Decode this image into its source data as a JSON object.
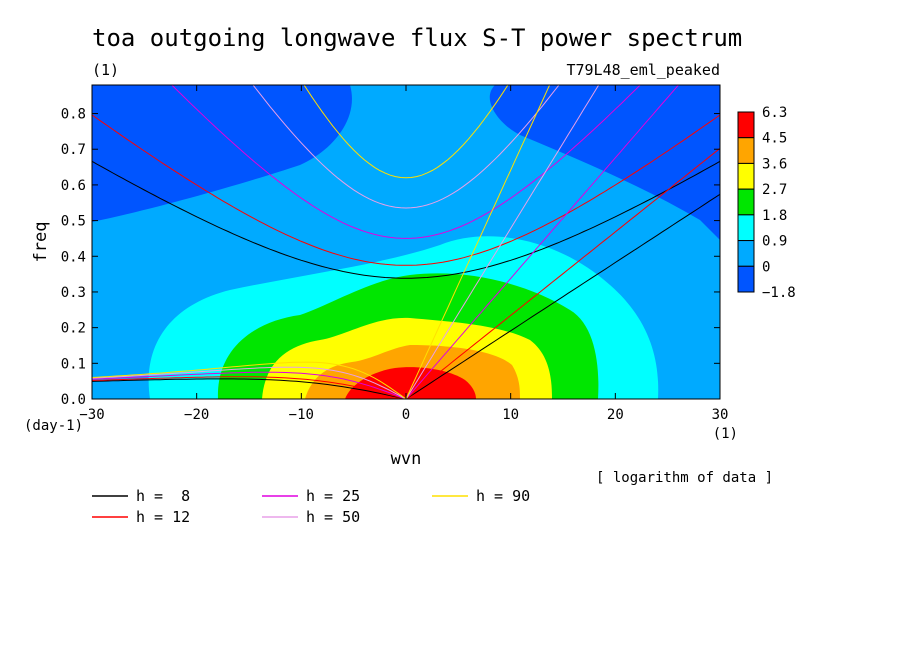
{
  "chart_data": {
    "type": "heatmap",
    "title": "toa outgoing longwave flux S-T power spectrum",
    "subtitle_left": "(1)",
    "subtitle_right": "T79L48_eml_peaked",
    "xlabel": "wvn",
    "ylabel": "freq",
    "x_unit": "(1)",
    "y_unit": "(day-1)",
    "xlim": [
      -30,
      30
    ],
    "ylim": [
      0,
      0.88
    ],
    "xticks": [
      -30,
      -20,
      -10,
      0,
      10,
      20,
      30
    ],
    "xtick_labels": [
      "−30",
      "−20",
      "−10",
      "0",
      "10",
      "20",
      "30"
    ],
    "yticks": [
      0,
      0.1,
      0.2,
      0.3,
      0.4,
      0.5,
      0.6,
      0.7,
      0.8
    ],
    "ytick_labels": [
      "0.0",
      "0.1",
      "0.2",
      "0.3",
      "0.4",
      "0.5",
      "0.6",
      "0.7",
      "0.8"
    ],
    "note": "[ logarithm of data ]",
    "colorbar": {
      "levels": [
        "6.3",
        "4.5",
        "3.6",
        "2.7",
        "1.8",
        "0.9",
        "0",
        "−1.8"
      ],
      "colors": [
        "#ff0000",
        "#ffa500",
        "#ffff00",
        "#00e600",
        "#00ffff",
        "#00aaff",
        "#0055ff"
      ]
    },
    "filled_contours": [
      {
        "level": "0",
        "color": "#00aaff"
      },
      {
        "level": "0.9",
        "color": "#00ffff"
      },
      {
        "level": "1.8",
        "color": "#00e600"
      },
      {
        "level": "2.7",
        "color": "#ffff00"
      },
      {
        "level": "3.6",
        "color": "#ffa500"
      },
      {
        "level": "4.5",
        "color": "#ff0000"
      }
    ],
    "dispersion_curves": [
      {
        "label": "h =  8",
        "h": 8,
        "color": "#000000"
      },
      {
        "label": "h = 12",
        "h": 12,
        "color": "#ff0000"
      },
      {
        "label": "h = 25",
        "h": 25,
        "color": "#e000e0"
      },
      {
        "label": "h = 50",
        "h": 50,
        "color": "#e8a0e8"
      },
      {
        "label": "h = 90",
        "h": 90,
        "color": "#ffe000"
      }
    ]
  }
}
